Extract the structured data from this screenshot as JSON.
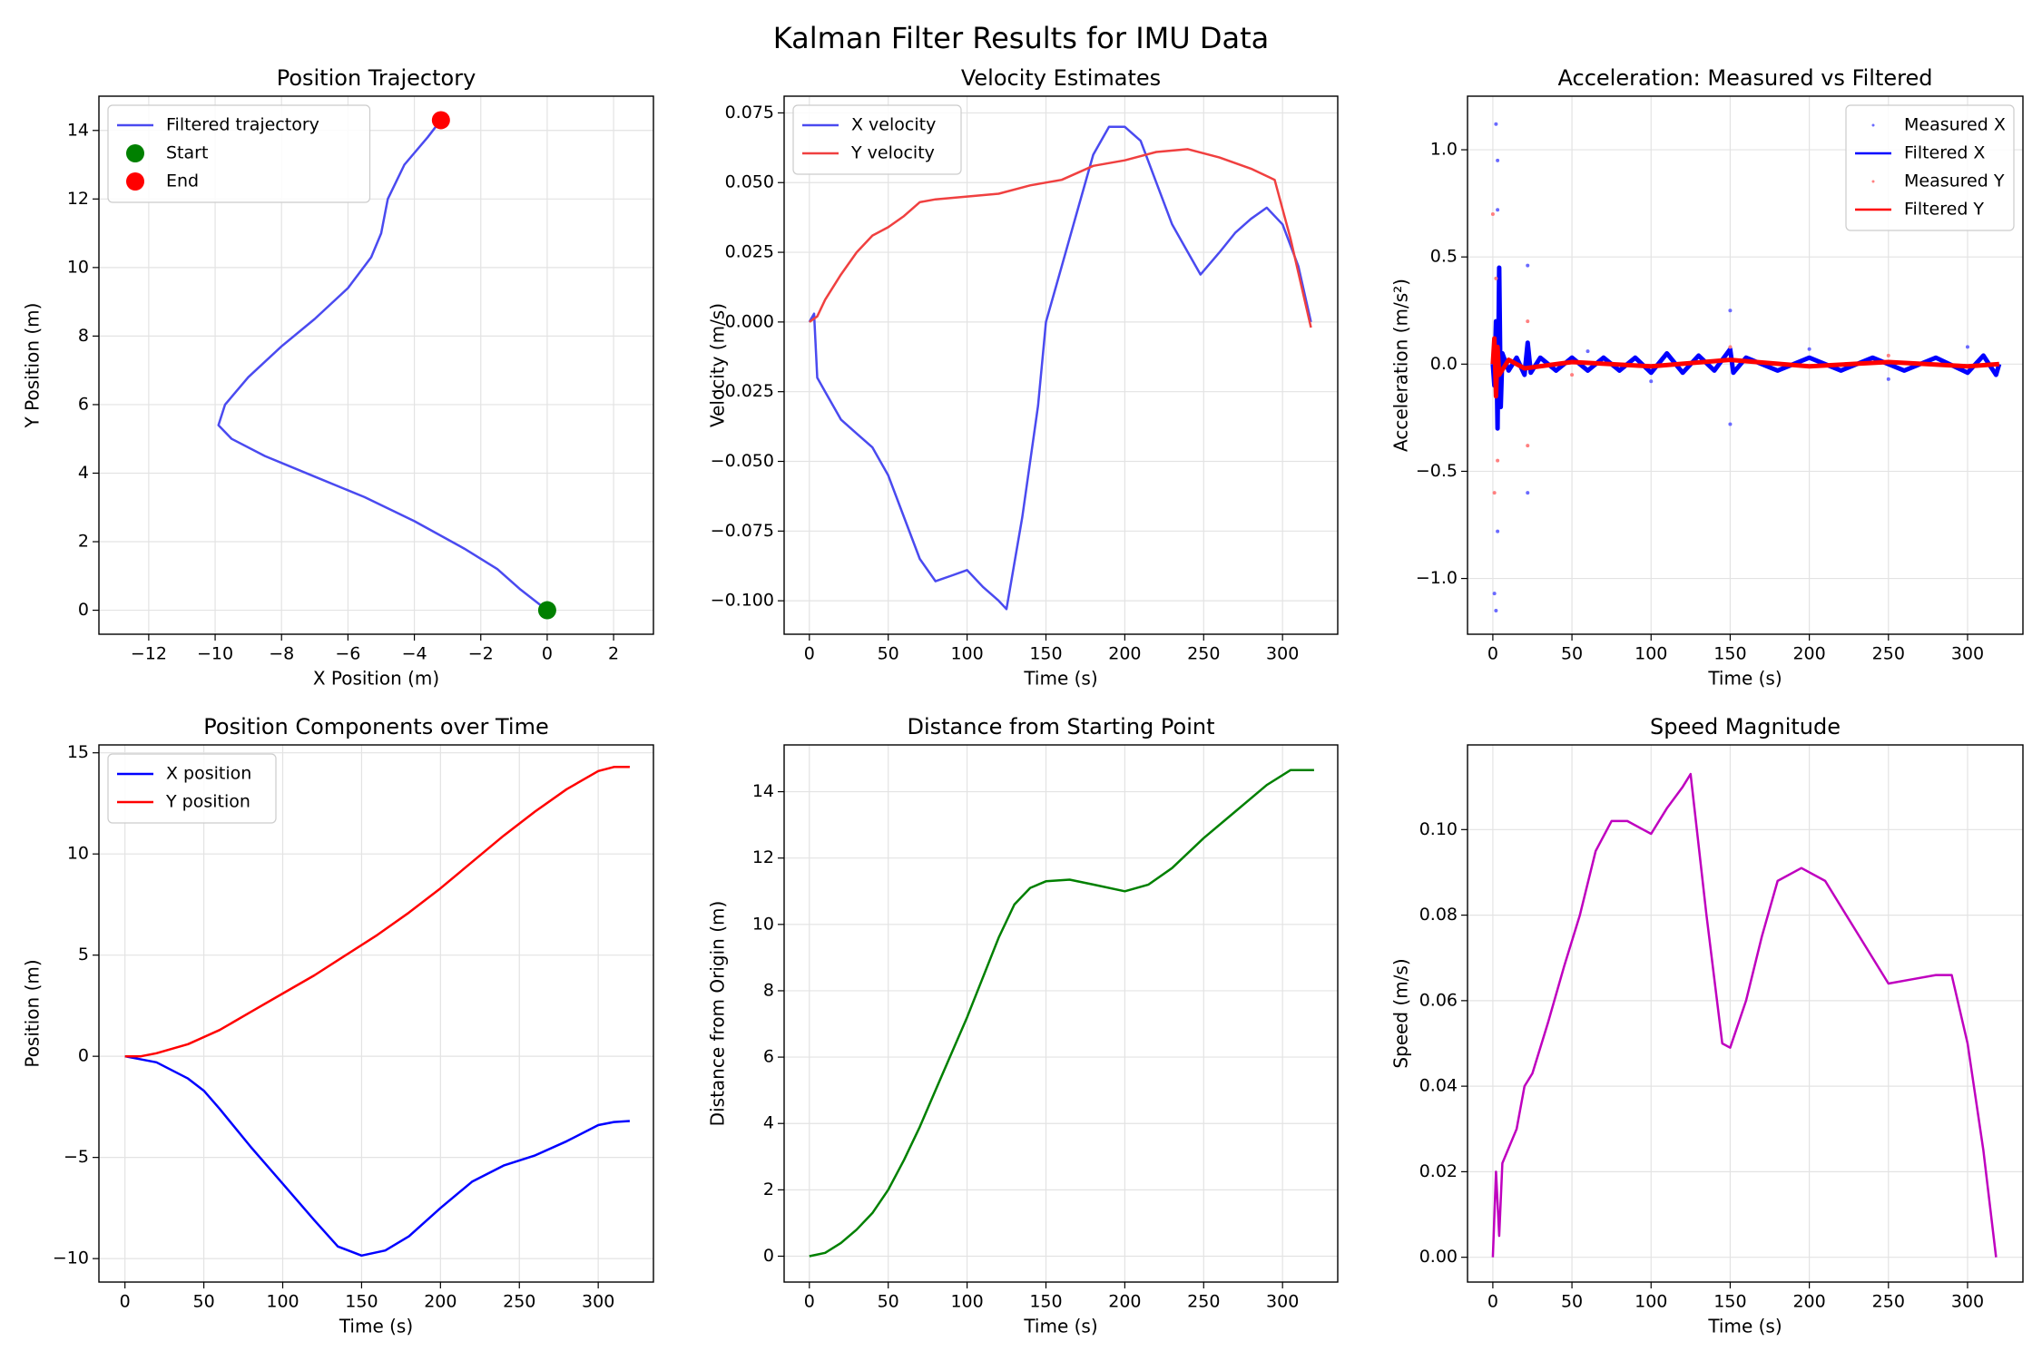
{
  "title": "Kalman Filter Results for IMU Data",
  "chart_data": [
    {
      "type": "line",
      "title": "Position Trajectory",
      "xlabel": "X Position (m)",
      "ylabel": "Y Position (m)",
      "xlim": [
        -13.5,
        3.2
      ],
      "ylim": [
        -0.7,
        15.0
      ],
      "xticks": [
        {
          "value": -12,
          "label": "−12"
        },
        {
          "value": -10,
          "label": "−10"
        },
        {
          "value": -8,
          "label": "−8"
        },
        {
          "value": -6,
          "label": "−6"
        },
        {
          "value": -4,
          "label": "−4"
        },
        {
          "value": -2,
          "label": "−2"
        },
        0,
        2
      ],
      "yticks": [
        0,
        2,
        4,
        6,
        8,
        10,
        12,
        14
      ],
      "grid": true,
      "legend": "upper left",
      "series": [
        {
          "name": "Filtered trajectory",
          "color": "#4a4af0",
          "kind": "line",
          "x": [
            0,
            -0.8,
            -1.5,
            -2.5,
            -4,
            -5.5,
            -7,
            -8.5,
            -9.5,
            -9.9,
            -9.7,
            -9,
            -8,
            -7,
            -6,
            -5.3,
            -5,
            -4.8,
            -4.3,
            -3.6,
            -3.2
          ],
          "values": [
            0,
            0.6,
            1.2,
            1.8,
            2.6,
            3.3,
            3.9,
            4.5,
            5,
            5.4,
            6,
            6.8,
            7.7,
            8.5,
            9.4,
            10.3,
            11,
            12,
            13,
            13.8,
            14.3
          ]
        },
        {
          "name": "Start",
          "color": "#008000",
          "kind": "marker",
          "x": [
            0
          ],
          "values": [
            0
          ]
        },
        {
          "name": "End",
          "color": "#ff0000",
          "kind": "marker",
          "x": [
            -3.2
          ],
          "values": [
            14.3
          ]
        }
      ]
    },
    {
      "type": "line",
      "title": "Velocity Estimates",
      "xlabel": "Time (s)",
      "ylabel": "Velocity (m/s)",
      "xlim": [
        -16,
        335
      ],
      "ylim": [
        -0.112,
        0.081
      ],
      "xticks": [
        0,
        50,
        100,
        150,
        200,
        250,
        300
      ],
      "yticks": [
        {
          "value": -0.1,
          "label": "−0.100"
        },
        {
          "value": -0.075,
          "label": "−0.075"
        },
        {
          "value": -0.05,
          "label": "−0.050"
        },
        {
          "value": -0.025,
          "label": "−0.025"
        },
        {
          "value": 0,
          "label": "0.000"
        },
        0.025,
        {
          "value": 0.05,
          "label": "0.050"
        },
        0.075
      ],
      "grid": true,
      "legend": "upper left",
      "series": [
        {
          "name": "X velocity",
          "color": "#4a4af0",
          "kind": "line",
          "x": [
            0,
            3,
            5,
            10,
            20,
            30,
            40,
            50,
            60,
            70,
            80,
            90,
            100,
            110,
            120,
            125,
            135,
            145,
            150,
            160,
            170,
            180,
            190,
            200,
            210,
            220,
            230,
            240,
            248,
            260,
            270,
            280,
            290,
            300,
            310,
            318
          ],
          "values": [
            0,
            0.003,
            -0.02,
            -0.025,
            -0.035,
            -0.04,
            -0.045,
            -0.055,
            -0.07,
            -0.085,
            -0.093,
            -0.091,
            -0.089,
            -0.095,
            -0.1,
            -0.103,
            -0.07,
            -0.03,
            0,
            0.02,
            0.04,
            0.06,
            0.07,
            0.07,
            0.065,
            0.05,
            0.035,
            0.025,
            0.017,
            0.025,
            0.032,
            0.037,
            0.041,
            0.035,
            0.02,
            0
          ]
        },
        {
          "name": "Y velocity",
          "color": "#f04040",
          "kind": "line",
          "x": [
            0,
            5,
            10,
            20,
            30,
            40,
            50,
            60,
            70,
            80,
            100,
            120,
            140,
            160,
            180,
            200,
            220,
            240,
            260,
            280,
            295,
            305,
            318
          ],
          "values": [
            0,
            0.002,
            0.008,
            0.017,
            0.025,
            0.031,
            0.034,
            0.038,
            0.043,
            0.044,
            0.045,
            0.046,
            0.049,
            0.051,
            0.056,
            0.058,
            0.061,
            0.062,
            0.059,
            0.055,
            0.051,
            0.03,
            -0.002
          ]
        }
      ]
    },
    {
      "type": "line",
      "title": "Acceleration: Measured vs Filtered",
      "xlabel": "Time (s)",
      "ylabel": "Acceleration (m/s²)",
      "xlim": [
        -16,
        335
      ],
      "ylim": [
        -1.26,
        1.25
      ],
      "xticks": [
        0,
        50,
        100,
        150,
        200,
        250,
        300
      ],
      "yticks": [
        {
          "value": -1,
          "label": "−1.0"
        },
        {
          "value": -0.5,
          "label": "−0.5"
        },
        {
          "value": 0,
          "label": "0.0"
        },
        0.5,
        {
          "value": 1,
          "label": "1.0"
        }
      ],
      "grid": true,
      "legend": "upper right",
      "series": [
        {
          "name": "Measured X",
          "color": "#6a6aff",
          "kind": "dots",
          "x": [
            2,
            2,
            3,
            3,
            3,
            22,
            22,
            150,
            150,
            1,
            60,
            100,
            200,
            250,
            300
          ],
          "values": [
            1.12,
            -1.15,
            -0.78,
            0.95,
            0.72,
            0.46,
            -0.6,
            0.25,
            -0.28,
            -1.07,
            0.06,
            -0.08,
            0.07,
            -0.07,
            0.08
          ]
        },
        {
          "name": "Filtered X",
          "color": "#0000ff",
          "kind": "band",
          "x": [
            0,
            1,
            2,
            3,
            4,
            5,
            6,
            10,
            15,
            20,
            22,
            24,
            30,
            40,
            50,
            60,
            70,
            80,
            90,
            100,
            110,
            120,
            130,
            140,
            150,
            152,
            160,
            180,
            200,
            220,
            240,
            260,
            280,
            300,
            310,
            318,
            320
          ],
          "values": [
            0,
            -0.1,
            0.2,
            -0.3,
            0.45,
            -0.2,
            0.05,
            -0.03,
            0.03,
            -0.05,
            0.1,
            -0.04,
            0.03,
            -0.03,
            0.03,
            -0.03,
            0.03,
            -0.03,
            0.03,
            -0.04,
            0.05,
            -0.04,
            0.04,
            -0.03,
            0.07,
            -0.04,
            0.03,
            -0.03,
            0.03,
            -0.03,
            0.03,
            -0.03,
            0.03,
            -0.04,
            0.04,
            -0.05,
            0
          ]
        },
        {
          "name": "Measured Y",
          "color": "#ff8080",
          "kind": "dots",
          "x": [
            0,
            1,
            2,
            22,
            22,
            3,
            150,
            50,
            250
          ],
          "values": [
            0.7,
            -0.6,
            0.4,
            0.2,
            -0.38,
            -0.45,
            0.08,
            -0.05,
            0.04
          ]
        },
        {
          "name": "Filtered Y",
          "color": "#ff0000",
          "kind": "band",
          "x": [
            0,
            1,
            2,
            3,
            4,
            10,
            20,
            50,
            100,
            150,
            200,
            250,
            300,
            320
          ],
          "values": [
            0,
            0.12,
            -0.15,
            0.08,
            -0.05,
            0.02,
            -0.02,
            0.01,
            -0.01,
            0.02,
            -0.01,
            0.01,
            -0.01,
            0
          ]
        }
      ]
    },
    {
      "type": "line",
      "title": "Position Components over Time",
      "xlabel": "Time (s)",
      "ylabel": "Position (m)",
      "xlim": [
        -16.5,
        335
      ],
      "ylim": [
        -11.16,
        15.39
      ],
      "xticks": [
        0,
        50,
        100,
        150,
        200,
        250,
        300
      ],
      "yticks": [
        {
          "value": -10,
          "label": "−10"
        },
        {
          "value": -5,
          "label": "−5"
        },
        0,
        5,
        10,
        15
      ],
      "grid": true,
      "legend": "upper left",
      "series": [
        {
          "name": "X position",
          "color": "#0000ff",
          "kind": "line",
          "x": [
            0,
            20,
            40,
            50,
            60,
            80,
            100,
            120,
            135,
            150,
            165,
            180,
            200,
            220,
            240,
            260,
            280,
            300,
            310,
            320
          ],
          "values": [
            0,
            -0.3,
            -1.1,
            -1.7,
            -2.6,
            -4.5,
            -6.3,
            -8.1,
            -9.4,
            -9.85,
            -9.6,
            -8.9,
            -7.5,
            -6.2,
            -5.4,
            -4.9,
            -4.2,
            -3.4,
            -3.25,
            -3.2
          ]
        },
        {
          "name": "Y position",
          "color": "#ff0000",
          "kind": "line",
          "x": [
            0,
            10,
            20,
            40,
            60,
            80,
            100,
            120,
            140,
            160,
            180,
            200,
            220,
            240,
            260,
            280,
            300,
            310,
            320
          ],
          "values": [
            0,
            0,
            0.15,
            0.6,
            1.3,
            2.2,
            3.1,
            4,
            5,
            6,
            7.1,
            8.3,
            9.6,
            10.9,
            12.1,
            13.2,
            14.1,
            14.3,
            14.3
          ]
        }
      ]
    },
    {
      "type": "line",
      "title": "Distance from Starting Point",
      "xlabel": "Time (s)",
      "ylabel": "Distance from Origin (m)",
      "xlim": [
        -16,
        335
      ],
      "ylim": [
        -0.78,
        15.41
      ],
      "xticks": [
        0,
        50,
        100,
        150,
        200,
        250,
        300
      ],
      "yticks": [
        0,
        2,
        4,
        6,
        8,
        10,
        12,
        14
      ],
      "grid": true,
      "series": [
        {
          "color": "#008000",
          "kind": "line",
          "x": [
            0,
            10,
            20,
            30,
            40,
            50,
            60,
            70,
            80,
            90,
            100,
            110,
            120,
            130,
            140,
            150,
            165,
            180,
            200,
            215,
            230,
            250,
            270,
            290,
            305,
            320
          ],
          "values": [
            0,
            0.1,
            0.4,
            0.8,
            1.3,
            2.0,
            2.9,
            3.9,
            5.0,
            6.1,
            7.2,
            8.4,
            9.6,
            10.6,
            11.1,
            11.3,
            11.35,
            11.2,
            11.0,
            11.2,
            11.7,
            12.6,
            13.4,
            14.2,
            14.65,
            14.65
          ]
        }
      ]
    },
    {
      "type": "line",
      "title": "Speed Magnitude",
      "xlabel": "Time (s)",
      "ylabel": "Speed (m/s)",
      "xlim": [
        -16,
        335
      ],
      "ylim": [
        -0.0058,
        0.1198
      ],
      "xticks": [
        0,
        50,
        100,
        150,
        200,
        250,
        300
      ],
      "yticks": [
        {
          "value": 0,
          "label": "0.00"
        },
        0.02,
        0.04,
        0.06,
        0.08,
        {
          "value": 0.1,
          "label": "0.10"
        }
      ],
      "grid": true,
      "series": [
        {
          "color": "#bf00bf",
          "kind": "line",
          "x": [
            0,
            2,
            4,
            6,
            15,
            20,
            25,
            35,
            45,
            55,
            65,
            75,
            85,
            95,
            100,
            110,
            120,
            125,
            135,
            145,
            150,
            160,
            170,
            180,
            195,
            210,
            230,
            250,
            265,
            280,
            290,
            300,
            310,
            318
          ],
          "values": [
            0,
            0.02,
            0.005,
            0.022,
            0.03,
            0.04,
            0.043,
            0.055,
            0.068,
            0.08,
            0.095,
            0.102,
            0.102,
            0.1,
            0.099,
            0.105,
            0.11,
            0.113,
            0.08,
            0.05,
            0.049,
            0.06,
            0.075,
            0.088,
            0.091,
            0.088,
            0.076,
            0.064,
            0.065,
            0.066,
            0.066,
            0.05,
            0.025,
            0
          ]
        }
      ]
    }
  ]
}
